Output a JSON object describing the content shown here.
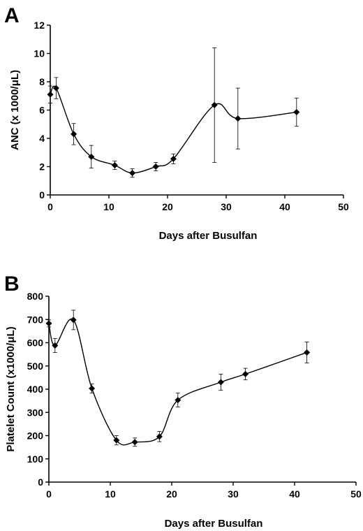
{
  "chart_data": [
    {
      "type": "line",
      "panel_label": "A",
      "title": "",
      "xlabel": "Days after Busulfan",
      "ylabel": "ANC (x 1000/μL)",
      "xlim": [
        0,
        50
      ],
      "ylim": [
        0,
        12
      ],
      "xticks": [
        "0",
        "10",
        "20",
        "30",
        "40",
        "50"
      ],
      "yticks": [
        "0",
        "2",
        "4",
        "6",
        "8",
        "10",
        "12"
      ],
      "grid": false,
      "legend": "none",
      "marker": "diamond",
      "series": [
        {
          "x": [
            0,
            1,
            4,
            7,
            11,
            14,
            18,
            21,
            28,
            32,
            42
          ],
          "y": [
            7.1,
            7.55,
            4.3,
            2.7,
            2.1,
            1.55,
            2.0,
            2.55,
            6.35,
            5.4,
            5.85
          ],
          "err": [
            0.6,
            0.75,
            0.75,
            0.8,
            0.3,
            0.3,
            0.3,
            0.35,
            4.05,
            2.15,
            1.0
          ]
        }
      ]
    },
    {
      "type": "line",
      "panel_label": "B",
      "title": "",
      "xlabel": "Days after Busulfan",
      "ylabel": "Platelet Count (x1000/μL)",
      "xlim": [
        0,
        50
      ],
      "ylim": [
        0,
        800
      ],
      "xticks": [
        "0",
        "10",
        "20",
        "30",
        "40",
        "50"
      ],
      "yticks": [
        "0",
        "100",
        "200",
        "300",
        "400",
        "500",
        "600",
        "700",
        "800"
      ],
      "grid": false,
      "legend": "none",
      "marker": "diamond",
      "series": [
        {
          "x": [
            0,
            1,
            4,
            7,
            11,
            14,
            18,
            21,
            28,
            32,
            42
          ],
          "y": [
            683,
            588,
            698,
            403,
            180,
            172,
            196,
            353,
            430,
            465,
            558
          ],
          "err": [
            15,
            30,
            42,
            20,
            20,
            18,
            22,
            30,
            35,
            25,
            45
          ]
        }
      ]
    }
  ]
}
